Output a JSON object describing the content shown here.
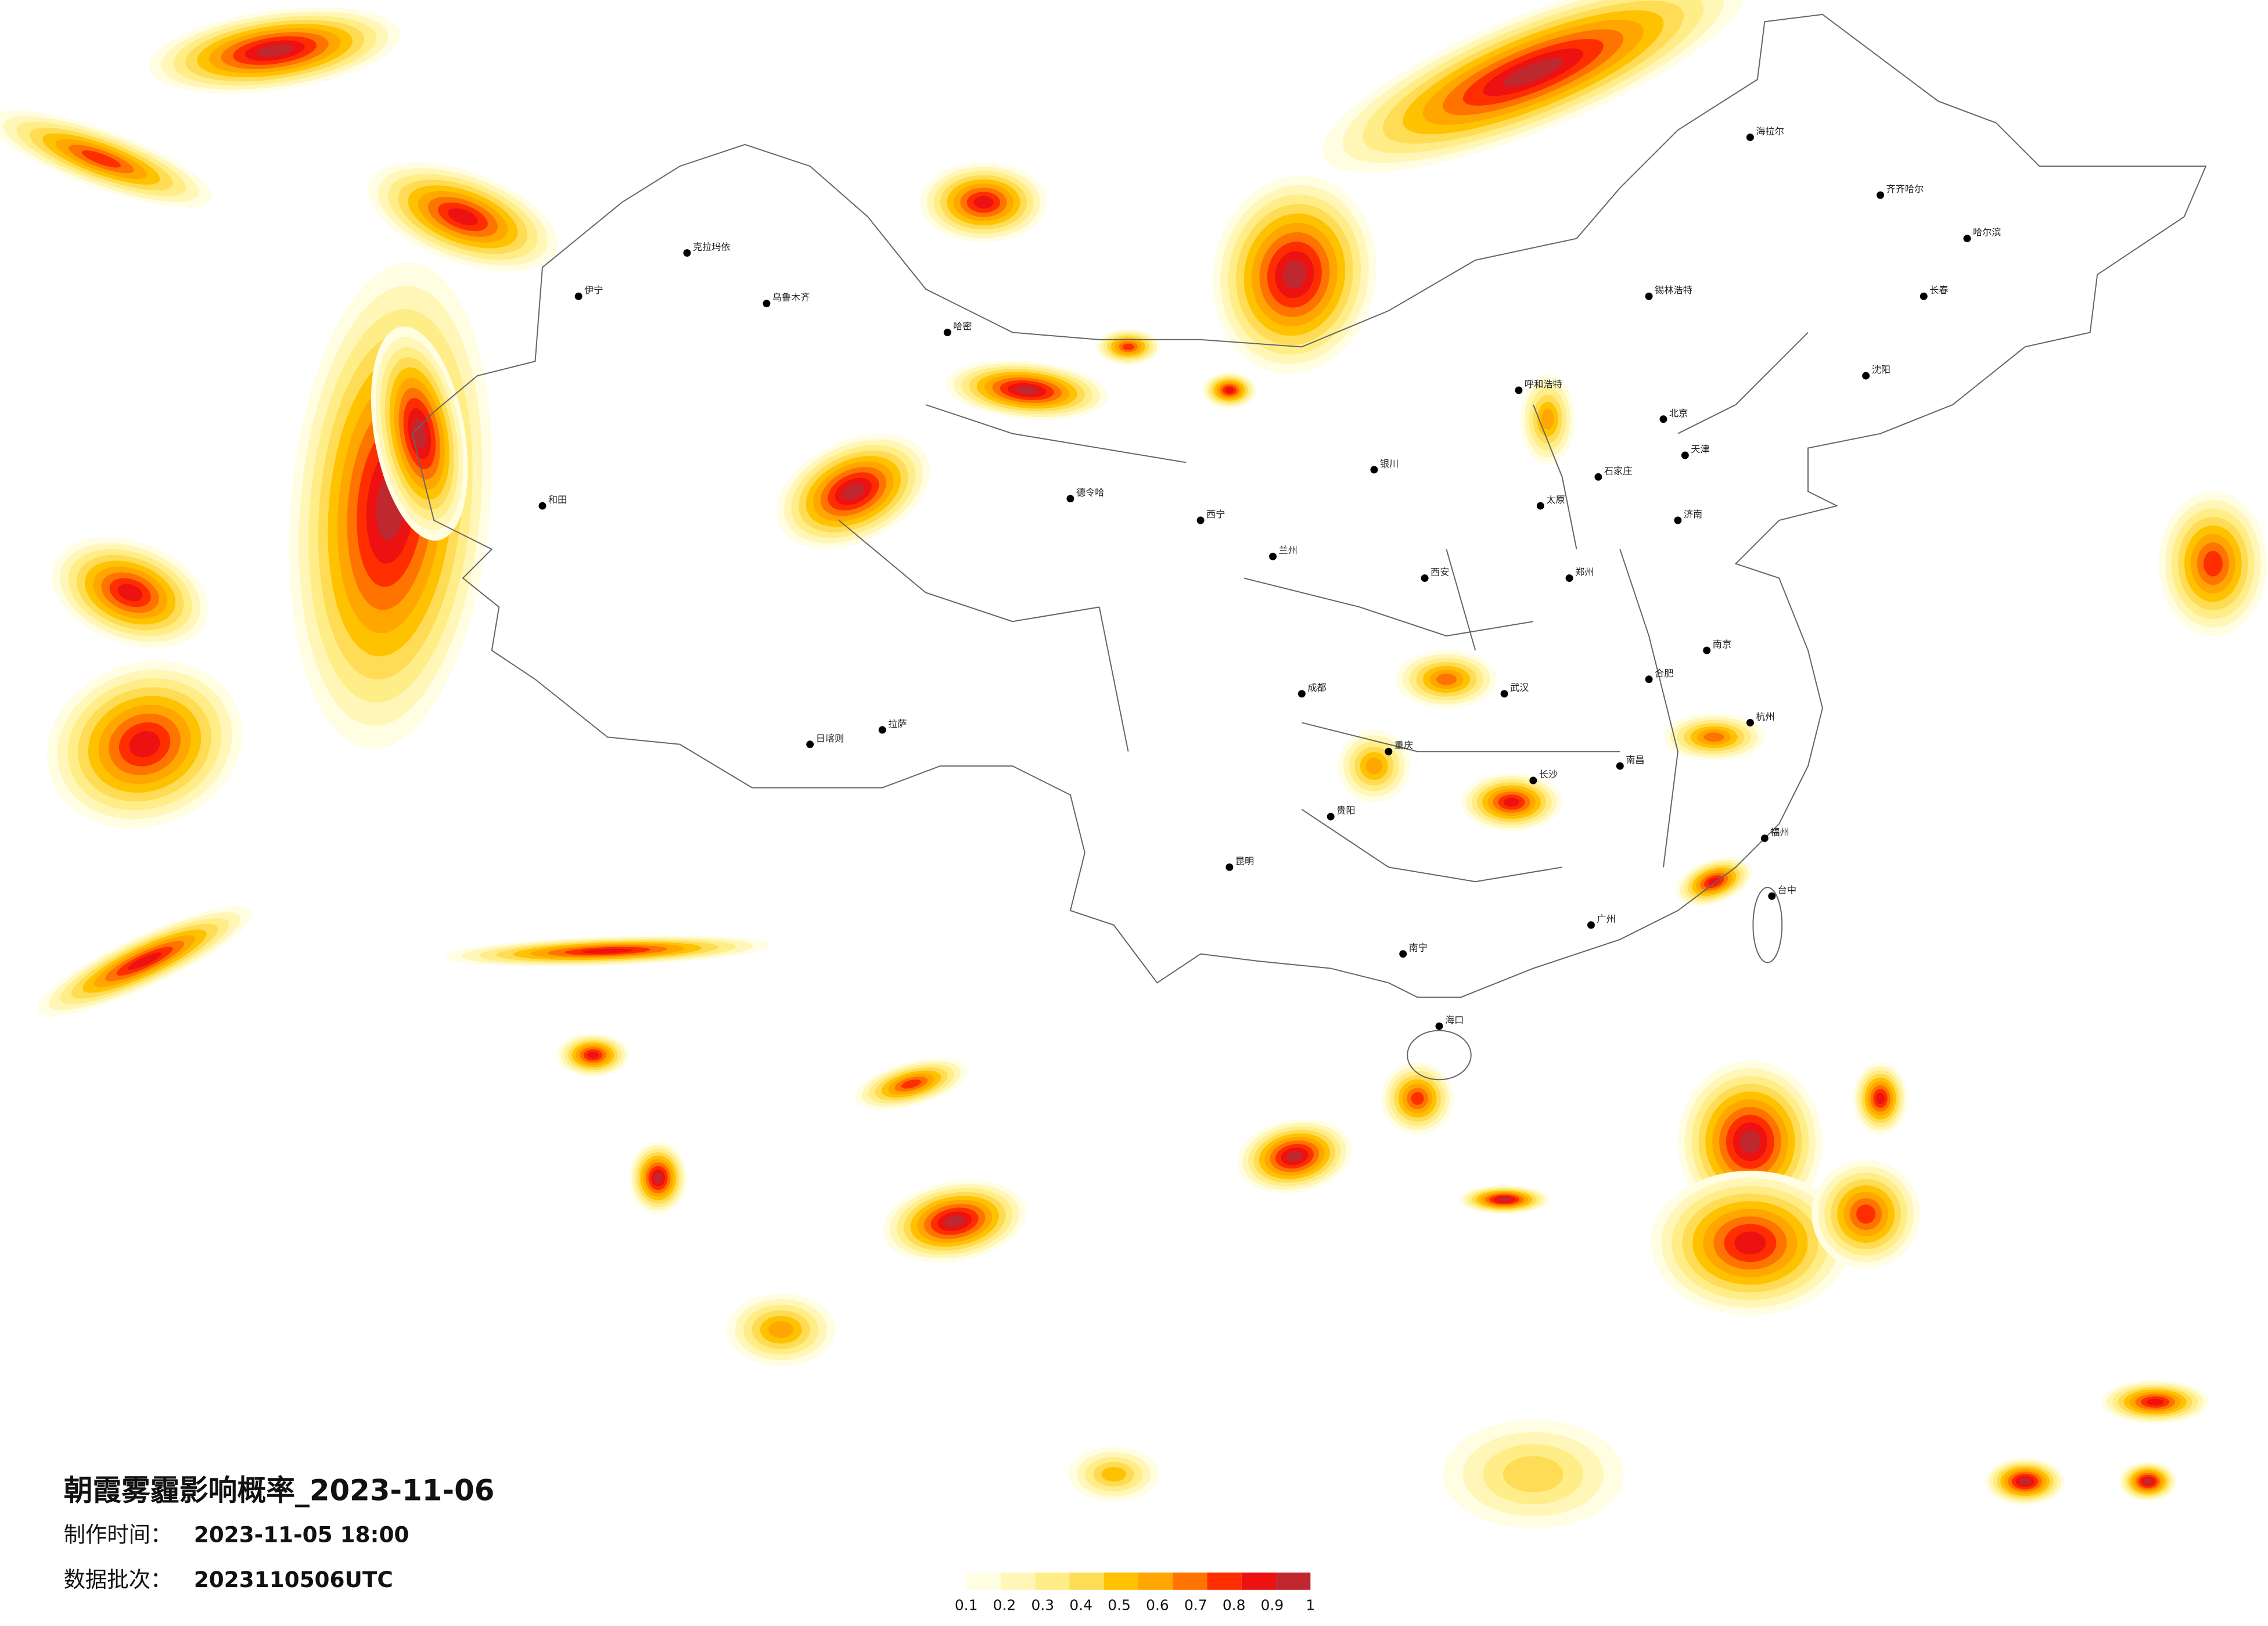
{
  "title": "朝霞雾霾影响概率_2023-11-06",
  "production_time": {
    "label": "制作时间：",
    "value": "2023-11-05 18:00"
  },
  "batch": {
    "label": "数据批次：",
    "value": "2023110506UTC"
  },
  "legend": {
    "colors": [
      "#fffde2",
      "#fff6b8",
      "#ffee88",
      "#ffdc55",
      "#ffc200",
      "#ffa600",
      "#ff7400",
      "#ff2e00",
      "#ee1111",
      "#c0282f"
    ],
    "ticks": [
      0.1,
      0.2,
      0.3,
      0.4,
      0.5,
      0.6,
      0.7,
      0.8,
      0.9,
      1
    ]
  },
  "cities": [
    "海拉尔",
    "齐齐哈尔",
    "哈尔滨",
    "长春",
    "沈阳",
    "锡林浩特",
    "呼和浩特",
    "北京",
    "天津",
    "石家庄",
    "太原",
    "济南",
    "郑州",
    "西安",
    "兰州",
    "西宁",
    "银川",
    "乌鲁木齐",
    "克拉玛依",
    "伊宁",
    "和田",
    "哈密",
    "德令哈",
    "拉萨",
    "日喀则",
    "成都",
    "重庆",
    "武汉",
    "长沙",
    "南昌",
    "合肥",
    "南京",
    "杭州",
    "福州",
    "广州",
    "南宁",
    "昆明",
    "贵阳",
    "海口",
    "台中"
  ]
}
